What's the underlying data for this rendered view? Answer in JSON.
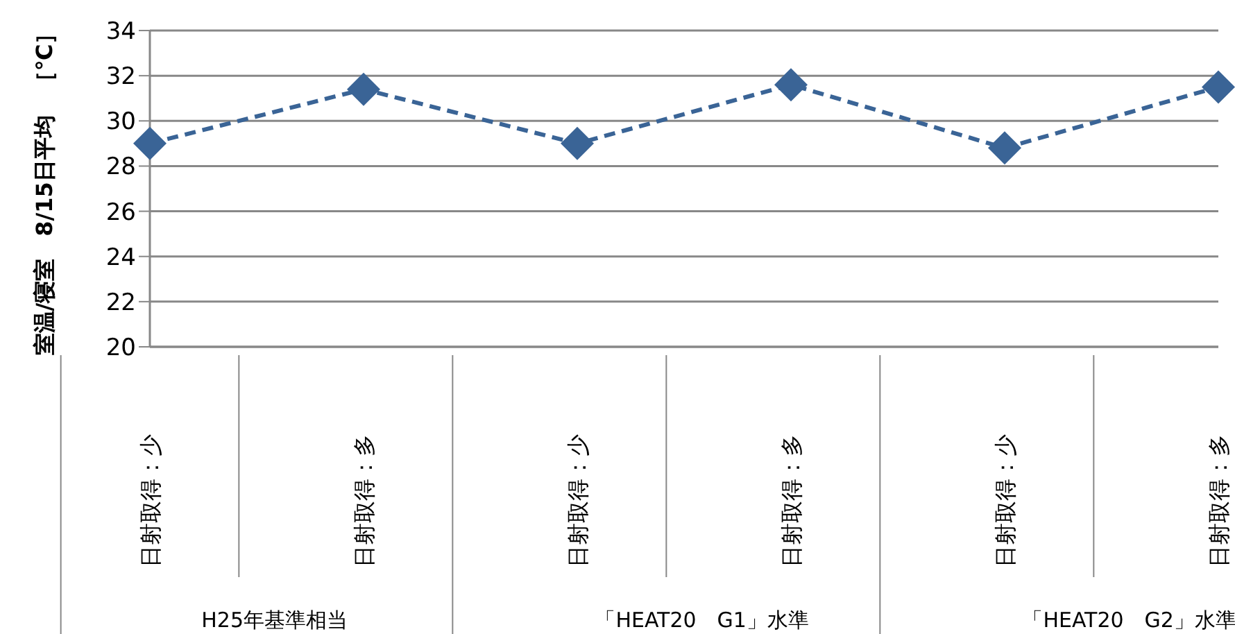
{
  "chart_data": {
    "type": "line",
    "ylabel": "室温/寝室　8/15日平均　［℃］",
    "categories": [
      "日射取得：少",
      "日射取得：多",
      "日射取得：少",
      "日射取得：多",
      "日射取得：少",
      "日射取得：多"
    ],
    "annotations": [
      "H25年基準相当",
      "「HEAT20　G1」水準",
      "「HEAT20　G2」水準"
    ],
    "series": [
      {
        "color": "#3a6496",
        "values": [
          29.0,
          31.4,
          29.0,
          31.6,
          28.8,
          31.5
        ]
      }
    ],
    "ylim": [
      20,
      34
    ],
    "yticks": [
      20,
      22,
      24,
      26,
      28,
      30,
      32,
      34
    ],
    "grid": "y",
    "marker": "diamond",
    "line_style": "dashed"
  }
}
